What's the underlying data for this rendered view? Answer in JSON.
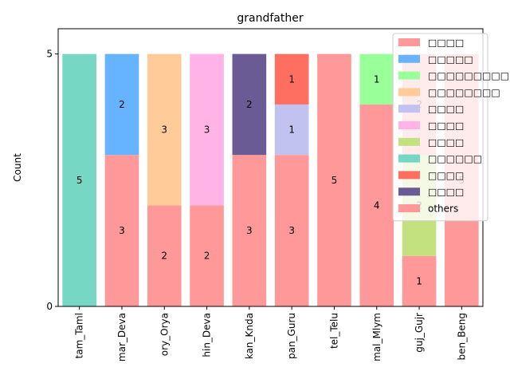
{
  "chart_data": {
    "type": "bar",
    "stacked": true,
    "title": "grandfather",
    "xlabel": "",
    "ylabel": "Count",
    "ylim": [
      0,
      5.5
    ],
    "yticks": [
      0,
      5
    ],
    "grid": false,
    "legend_position": "top-right",
    "categories": [
      "tam_Taml",
      "mar_Deva",
      "ory_Orya",
      "hin_Deva",
      "kan_Knda",
      "pan_Guru",
      "tel_Telu",
      "mal_Mlym",
      "guj_Gujr",
      "ben_Beng"
    ],
    "series": [
      {
        "name": "□□□□",
        "color": "#ff9999",
        "values": [
          0,
          3,
          2,
          2,
          3,
          3,
          5,
          4,
          1,
          5
        ]
      },
      {
        "name": "□□□□□",
        "color": "#66b3ff",
        "values": [
          0,
          2,
          0,
          0,
          0,
          0,
          0,
          0,
          0,
          0
        ]
      },
      {
        "name": "□□□□□□□□□",
        "color": "#99ff99",
        "values": [
          0,
          0,
          0,
          0,
          0,
          0,
          0,
          1,
          0,
          0
        ]
      },
      {
        "name": "□□□□□□□□",
        "color": "#ffcc99",
        "values": [
          0,
          0,
          3,
          0,
          0,
          0,
          0,
          0,
          0,
          0
        ]
      },
      {
        "name": "□□□□",
        "color": "#c2c2f0",
        "values": [
          0,
          0,
          0,
          0,
          0,
          1,
          0,
          0,
          0,
          0
        ]
      },
      {
        "name": "□□□□",
        "color": "#ffb3e6",
        "values": [
          0,
          0,
          0,
          3,
          0,
          0,
          0,
          0,
          0,
          0
        ]
      },
      {
        "name": "□□□□",
        "color": "#c4e17f",
        "values": [
          0,
          0,
          0,
          0,
          0,
          0,
          0,
          0,
          2,
          0
        ]
      },
      {
        "name": "□□□□□□",
        "color": "#76d7c4",
        "values": [
          5,
          0,
          0,
          0,
          0,
          0,
          0,
          0,
          0,
          0
        ]
      },
      {
        "name": "□□□□",
        "color": "#ff6f61",
        "values": [
          0,
          0,
          0,
          0,
          0,
          1,
          0,
          0,
          0,
          0
        ]
      },
      {
        "name": "□□□□",
        "color": "#6b5b95",
        "values": [
          0,
          0,
          0,
          0,
          2,
          0,
          0,
          0,
          0,
          0
        ]
      },
      {
        "name": "others",
        "color": "#ff9999",
        "values": [
          0,
          0,
          0,
          0,
          0,
          0,
          0,
          0,
          2,
          0
        ]
      }
    ]
  }
}
